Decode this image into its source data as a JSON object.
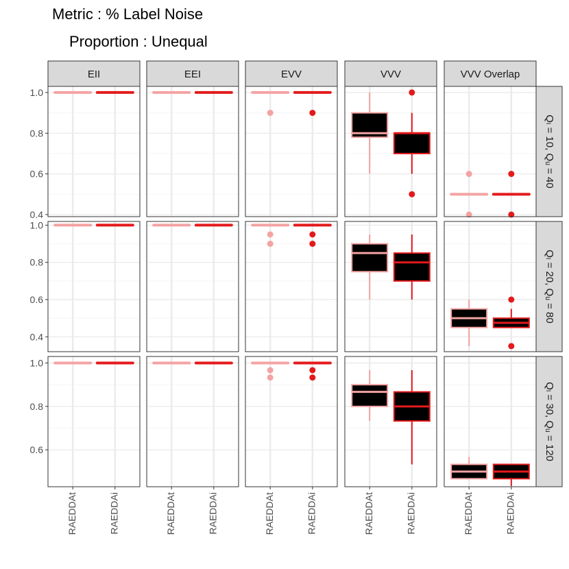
{
  "title": "Metric : % Label Noise",
  "subtitle": "Proportion : Unequal",
  "colors": {
    "RAEDDAt": "#f4a3a3",
    "RAEDDAi": "#e31a1c",
    "box_fill": "#000000",
    "strip_bg": "#d9d9d9",
    "grid_major": "#ebebeb",
    "grid_minor": "#f5f5f5",
    "panel_border": "#333333"
  },
  "chart_data": {
    "type": "boxplot",
    "facet_cols": [
      "EII",
      "EEI",
      "EVV",
      "VVV",
      "VVV Overlap"
    ],
    "facet_rows": [
      {
        "label": "Qₗ = 10,  Qᵤ = 40",
        "ylim": [
          0.39,
          1.03
        ],
        "yticks": [
          0.4,
          0.6,
          0.8,
          1.0
        ],
        "ytick_labels": [
          "0.4",
          "0.6",
          "0.8",
          "1.0"
        ]
      },
      {
        "label": "Qₗ = 20,  Qᵤ = 80",
        "ylim": [
          0.32,
          1.02
        ],
        "yticks": [
          0.4,
          0.6,
          0.8,
          1.0
        ],
        "ytick_labels": [
          "0.4",
          "0.6",
          "0.8",
          "1.0"
        ]
      },
      {
        "label": "Qₗ = 30,  Qᵤ = 120",
        "ylim": [
          0.43,
          1.03
        ],
        "yticks": [
          0.6,
          0.8,
          1.0
        ],
        "ytick_labels": [
          "0.6",
          "0.8",
          "1.0"
        ]
      }
    ],
    "x_categories": [
      "RAEDDAt",
      "RAEDDAi"
    ],
    "boxes": [
      [
        [
          {
            "q1": 1.0,
            "med": 1.0,
            "q3": 1.0,
            "lo": 1.0,
            "hi": 1.0,
            "out": []
          },
          {
            "q1": 1.0,
            "med": 1.0,
            "q3": 1.0,
            "lo": 1.0,
            "hi": 1.0,
            "out": []
          }
        ],
        [
          {
            "q1": 1.0,
            "med": 1.0,
            "q3": 1.0,
            "lo": 1.0,
            "hi": 1.0,
            "out": []
          },
          {
            "q1": 1.0,
            "med": 1.0,
            "q3": 1.0,
            "lo": 1.0,
            "hi": 1.0,
            "out": []
          }
        ],
        [
          {
            "q1": 1.0,
            "med": 1.0,
            "q3": 1.0,
            "lo": 1.0,
            "hi": 1.0,
            "out": [
              0.9
            ]
          },
          {
            "q1": 1.0,
            "med": 1.0,
            "q3": 1.0,
            "lo": 1.0,
            "hi": 1.0,
            "out": [
              0.9
            ]
          }
        ],
        [
          {
            "q1": 0.78,
            "med": 0.8,
            "q3": 0.9,
            "lo": 0.6,
            "hi": 1.0,
            "out": []
          },
          {
            "q1": 0.7,
            "med": 0.8,
            "q3": 0.8,
            "lo": 0.6,
            "hi": 0.9,
            "out": [
              1.0,
              0.5
            ]
          }
        ],
        [
          {
            "q1": 0.5,
            "med": 0.5,
            "q3": 0.5,
            "lo": 0.5,
            "hi": 0.5,
            "out": [
              0.6,
              0.4
            ]
          },
          {
            "q1": 0.5,
            "med": 0.5,
            "q3": 0.5,
            "lo": 0.5,
            "hi": 0.5,
            "out": [
              0.6,
              0.4
            ]
          }
        ]
      ],
      [
        [
          {
            "q1": 1.0,
            "med": 1.0,
            "q3": 1.0,
            "lo": 1.0,
            "hi": 1.0,
            "out": []
          },
          {
            "q1": 1.0,
            "med": 1.0,
            "q3": 1.0,
            "lo": 1.0,
            "hi": 1.0,
            "out": []
          }
        ],
        [
          {
            "q1": 1.0,
            "med": 1.0,
            "q3": 1.0,
            "lo": 1.0,
            "hi": 1.0,
            "out": []
          },
          {
            "q1": 1.0,
            "med": 1.0,
            "q3": 1.0,
            "lo": 1.0,
            "hi": 1.0,
            "out": []
          }
        ],
        [
          {
            "q1": 1.0,
            "med": 1.0,
            "q3": 1.0,
            "lo": 1.0,
            "hi": 1.0,
            "out": [
              0.95,
              0.9
            ]
          },
          {
            "q1": 1.0,
            "med": 1.0,
            "q3": 1.0,
            "lo": 1.0,
            "hi": 1.0,
            "out": [
              0.95,
              0.9
            ]
          }
        ],
        [
          {
            "q1": 0.75,
            "med": 0.85,
            "q3": 0.9,
            "lo": 0.6,
            "hi": 0.95,
            "out": []
          },
          {
            "q1": 0.7,
            "med": 0.8,
            "q3": 0.85,
            "lo": 0.6,
            "hi": 0.95,
            "out": []
          }
        ],
        [
          {
            "q1": 0.45,
            "med": 0.5,
            "q3": 0.55,
            "lo": 0.35,
            "hi": 0.6,
            "out": []
          },
          {
            "q1": 0.45,
            "med": 0.475,
            "q3": 0.5,
            "lo": 0.45,
            "hi": 0.55,
            "out": [
              0.6,
              0.35
            ]
          }
        ]
      ],
      [
        [
          {
            "q1": 1.0,
            "med": 1.0,
            "q3": 1.0,
            "lo": 1.0,
            "hi": 1.0,
            "out": []
          },
          {
            "q1": 1.0,
            "med": 1.0,
            "q3": 1.0,
            "lo": 1.0,
            "hi": 1.0,
            "out": []
          }
        ],
        [
          {
            "q1": 1.0,
            "med": 1.0,
            "q3": 1.0,
            "lo": 1.0,
            "hi": 1.0,
            "out": []
          },
          {
            "q1": 1.0,
            "med": 1.0,
            "q3": 1.0,
            "lo": 1.0,
            "hi": 1.0,
            "out": []
          }
        ],
        [
          {
            "q1": 1.0,
            "med": 1.0,
            "q3": 1.0,
            "lo": 1.0,
            "hi": 1.0,
            "out": [
              0.967,
              0.933
            ]
          },
          {
            "q1": 1.0,
            "med": 1.0,
            "q3": 1.0,
            "lo": 1.0,
            "hi": 1.0,
            "out": [
              0.967,
              0.933
            ]
          }
        ],
        [
          {
            "q1": 0.8,
            "med": 0.867,
            "q3": 0.9,
            "lo": 0.733,
            "hi": 0.967,
            "out": []
          },
          {
            "q1": 0.733,
            "med": 0.8,
            "q3": 0.867,
            "lo": 0.533,
            "hi": 0.967,
            "out": []
          }
        ],
        [
          {
            "q1": 0.467,
            "med": 0.5,
            "q3": 0.533,
            "lo": 0.467,
            "hi": 0.567,
            "out": []
          },
          {
            "q1": 0.467,
            "med": 0.5,
            "q3": 0.533,
            "lo": 0.433,
            "hi": 0.533,
            "out": []
          }
        ]
      ]
    ]
  }
}
